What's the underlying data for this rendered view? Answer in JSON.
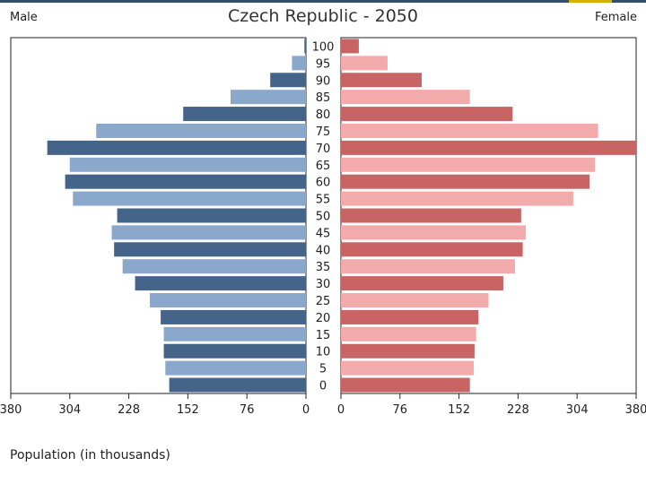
{
  "title": "Czech Republic - 2050",
  "male_label": "Male",
  "female_label": "Female",
  "xlabel": "Population (in thousands)",
  "chart_data": {
    "type": "bar",
    "orientation": "horizontal-pyramid",
    "title": "Czech Republic - 2050",
    "xlabel": "Population (in thousands)",
    "xlim": [
      0,
      380
    ],
    "ticks": [
      0,
      76,
      152,
      228,
      304,
      380
    ],
    "categories": [
      "100",
      "95",
      "90",
      "85",
      "80",
      "75",
      "70",
      "65",
      "60",
      "55",
      "50",
      "45",
      "40",
      "35",
      "30",
      "25",
      "20",
      "15",
      "10",
      "5",
      "0"
    ],
    "series": [
      {
        "name": "Male",
        "colors": [
          "#44648a",
          "#8aa8cc"
        ],
        "values": [
          2,
          18,
          46,
          97,
          158,
          270,
          333,
          304,
          310,
          300,
          243,
          250,
          247,
          236,
          220,
          201,
          187,
          183,
          183,
          181,
          176
        ]
      },
      {
        "name": "Female",
        "colors": [
          "#c86464",
          "#f2aaaa"
        ],
        "values": [
          23,
          60,
          104,
          166,
          221,
          331,
          383,
          327,
          320,
          299,
          232,
          238,
          234,
          224,
          209,
          190,
          177,
          174,
          172,
          171,
          166
        ]
      }
    ]
  }
}
